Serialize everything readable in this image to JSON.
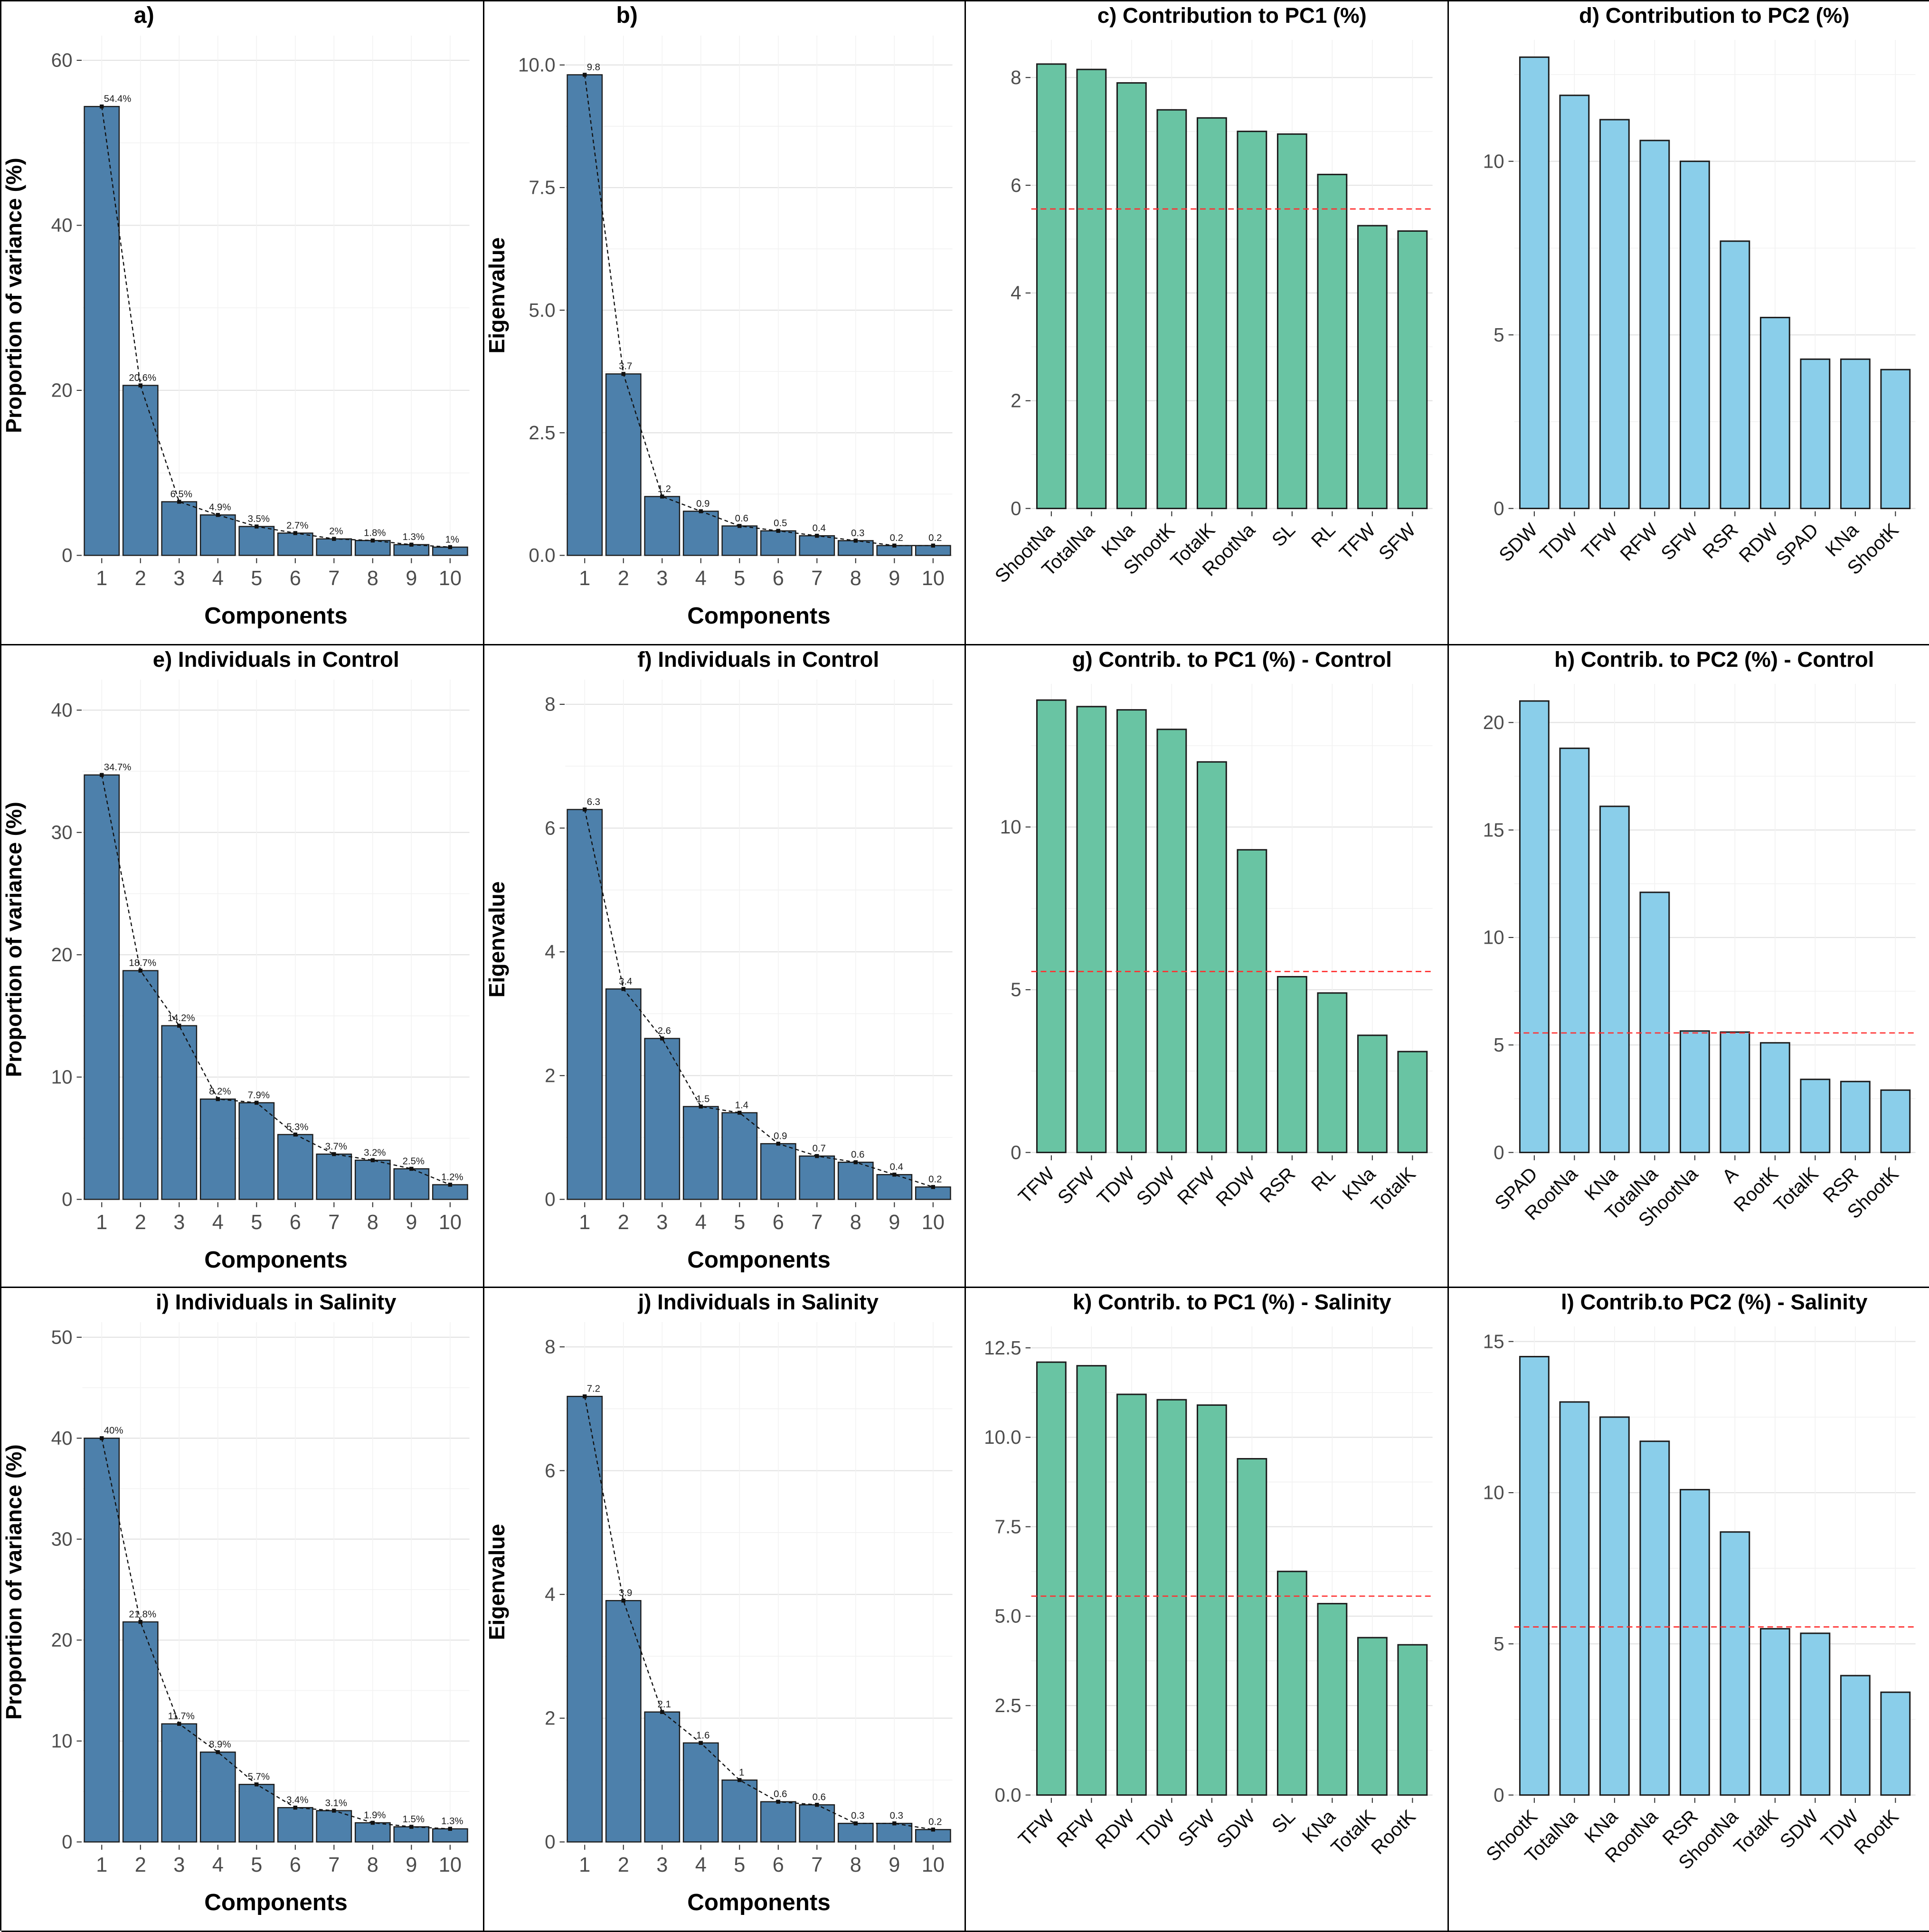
{
  "figure": {
    "description": "PCA scree plots, eigenvalue plots and variable contribution bar charts",
    "threshold_value": 5.56
  },
  "colors": {
    "scree_bar": "#4d80ab",
    "pc1_bar": "#69c4a3",
    "pc2_bar": "#8aceea",
    "threshold": "#ff3030",
    "bar_stroke": "#1b1b1b",
    "grid_major": "#e3e3e3",
    "grid_minor": "#f2f2f2",
    "tick_text": "#4d4d4d",
    "text": "#000000"
  },
  "chart_data": [
    {
      "id": "a",
      "title": "a)",
      "type": "bar",
      "role": "scree-proportion-of-variance",
      "categories": [
        "1",
        "2",
        "3",
        "4",
        "5",
        "6",
        "7",
        "8",
        "9",
        "10"
      ],
      "values": [
        54.4,
        20.6,
        6.5,
        4.9,
        3.5,
        2.7,
        2.0,
        1.8,
        1.3,
        1.0
      ],
      "point_labels": [
        "54.4%",
        "20.6%",
        "6.5%",
        "4.9%",
        "3.5%",
        "2.7%",
        "2%",
        "1.8%",
        "1.3%",
        "1%"
      ],
      "xlabel": "Components",
      "ylabel": "Proportion of variance (%)",
      "yticks": [
        0,
        20,
        40,
        60
      ],
      "ytick_labels": [
        "0",
        "20",
        "40",
        "60"
      ],
      "ylim": [
        0,
        63
      ],
      "bar_color": "#4d80ab",
      "line_overlay": true,
      "threshold": null,
      "rotated_x_labels": false,
      "grid": true,
      "legend": null
    },
    {
      "id": "b",
      "title": "b)",
      "type": "bar",
      "role": "scree-eigenvalue",
      "categories": [
        "1",
        "2",
        "3",
        "4",
        "5",
        "6",
        "7",
        "8",
        "9",
        "10"
      ],
      "values": [
        9.8,
        3.7,
        1.2,
        0.9,
        0.6,
        0.5,
        0.4,
        0.3,
        0.2,
        0.2
      ],
      "point_labels": [
        "9.8",
        "3.7",
        "1.2",
        "0.9",
        "0.6",
        "0.5",
        "0.4",
        "0.3",
        "0.2",
        "0.2"
      ],
      "xlabel": "Components",
      "ylabel": "Eigenvalue",
      "yticks": [
        0,
        2.5,
        5,
        7.5,
        10
      ],
      "ytick_labels": [
        "0.0",
        "2.5",
        "5.0",
        "7.5",
        "10.0"
      ],
      "ylim": [
        0,
        10.6
      ],
      "bar_color": "#4d80ab",
      "line_overlay": true,
      "threshold": null,
      "rotated_x_labels": false,
      "grid": true,
      "legend": null
    },
    {
      "id": "c",
      "title": "c) Contribution to PC1 (%)",
      "type": "bar",
      "role": "variable-contribution",
      "categories": [
        "ShootNa",
        "TotalNa",
        "KNa",
        "ShootK",
        "TotalK",
        "RootNa",
        "SL",
        "RL",
        "TFW",
        "SFW"
      ],
      "values": [
        8.25,
        8.15,
        7.9,
        7.4,
        7.25,
        7.0,
        6.95,
        6.2,
        5.25,
        5.15
      ],
      "point_labels": null,
      "xlabel": "",
      "ylabel": "",
      "yticks": [
        0,
        2,
        4,
        6,
        8
      ],
      "ytick_labels": [
        "0",
        "2",
        "4",
        "6",
        "8"
      ],
      "ylim": [
        0,
        8.7
      ],
      "bar_color": "#69c4a3",
      "line_overlay": false,
      "threshold": 5.56,
      "rotated_x_labels": true,
      "grid": true,
      "legend": null
    },
    {
      "id": "d",
      "title": "d) Contribution to PC2 (%)",
      "type": "bar",
      "role": "variable-contribution",
      "categories": [
        "SDW",
        "TDW",
        "TFW",
        "RFW",
        "SFW",
        "RSR",
        "RDW",
        "SPAD",
        "KNa",
        "ShootK"
      ],
      "values": [
        13.0,
        11.9,
        11.2,
        10.6,
        10.0,
        7.7,
        5.5,
        4.3,
        4.3,
        4.0
      ],
      "point_labels": null,
      "xlabel": "",
      "ylabel": "",
      "yticks": [
        0,
        5,
        10
      ],
      "ytick_labels": [
        "0",
        "5",
        "10"
      ],
      "ylim": [
        0,
        13.5
      ],
      "bar_color": "#8aceea",
      "line_overlay": false,
      "threshold": null,
      "rotated_x_labels": true,
      "grid": true,
      "legend": null
    },
    {
      "id": "e",
      "title": "e) Individuals in Control",
      "type": "bar",
      "role": "scree-proportion-of-variance",
      "categories": [
        "1",
        "2",
        "3",
        "4",
        "5",
        "6",
        "7",
        "8",
        "9",
        "10"
      ],
      "values": [
        34.7,
        18.7,
        14.2,
        8.2,
        7.9,
        5.3,
        3.7,
        3.2,
        2.5,
        1.2
      ],
      "point_labels": [
        "34.7%",
        "18.7%",
        "14.2%",
        "8.2%",
        "7.9%",
        "5.3%",
        "3.7%",
        "3.2%",
        "2.5%",
        "1.2%"
      ],
      "xlabel": "Components",
      "ylabel": "Proportion of variance (%)",
      "yticks": [
        0,
        10,
        20,
        30,
        40
      ],
      "ytick_labels": [
        "0",
        "10",
        "20",
        "30",
        "40"
      ],
      "ylim": [
        0,
        42.5
      ],
      "bar_color": "#4d80ab",
      "line_overlay": true,
      "threshold": null,
      "rotated_x_labels": false,
      "grid": true,
      "legend": null
    },
    {
      "id": "f",
      "title": "f) Individuals in Control",
      "type": "bar",
      "role": "scree-eigenvalue",
      "categories": [
        "1",
        "2",
        "3",
        "4",
        "5",
        "6",
        "7",
        "8",
        "9",
        "10"
      ],
      "values": [
        6.3,
        3.4,
        2.6,
        1.5,
        1.4,
        0.9,
        0.7,
        0.6,
        0.4,
        0.2
      ],
      "point_labels": [
        "6.3",
        "3.4",
        "2.6",
        "1.5",
        "1.4",
        "0.9",
        "0.7",
        "0.6",
        "0.4",
        "0.2"
      ],
      "xlabel": "Components",
      "ylabel": "Eigenvalue",
      "yticks": [
        0,
        2,
        4,
        6,
        8
      ],
      "ytick_labels": [
        "0",
        "2",
        "4",
        "6",
        "8"
      ],
      "ylim": [
        0,
        8.4
      ],
      "bar_color": "#4d80ab",
      "line_overlay": true,
      "threshold": null,
      "rotated_x_labels": false,
      "grid": true,
      "legend": null
    },
    {
      "id": "g",
      "title": "g) Contrib. to PC1 (%) - Control",
      "type": "bar",
      "role": "variable-contribution",
      "categories": [
        "TFW",
        "SFW",
        "TDW",
        "SDW",
        "RFW",
        "RDW",
        "RSR",
        "RL",
        "KNa",
        "TotalK"
      ],
      "values": [
        13.9,
        13.7,
        13.6,
        13.0,
        12.0,
        9.3,
        5.4,
        4.9,
        3.6,
        3.1
      ],
      "point_labels": null,
      "xlabel": "",
      "ylabel": "",
      "yticks": [
        0,
        5,
        10
      ],
      "ytick_labels": [
        "0",
        "5",
        "10"
      ],
      "ylim": [
        0,
        14.4
      ],
      "bar_color": "#69c4a3",
      "line_overlay": false,
      "threshold": 5.56,
      "rotated_x_labels": true,
      "grid": true,
      "legend": null
    },
    {
      "id": "h",
      "title": "h) Contrib. to PC2 (%) - Control",
      "type": "bar",
      "role": "variable-contribution",
      "categories": [
        "SPAD",
        "RootNa",
        "KNa",
        "TotalNa",
        "ShootNa",
        "A",
        "RootK",
        "TotalK",
        "RSR",
        "ShootK"
      ],
      "values": [
        21.0,
        18.8,
        16.1,
        12.1,
        5.65,
        5.6,
        5.1,
        3.4,
        3.3,
        2.9
      ],
      "point_labels": null,
      "xlabel": "",
      "ylabel": "",
      "yticks": [
        0,
        5,
        10,
        15,
        20
      ],
      "ytick_labels": [
        "0",
        "5",
        "10",
        "15",
        "20"
      ],
      "ylim": [
        0,
        21.8
      ],
      "bar_color": "#8aceea",
      "line_overlay": false,
      "threshold": 5.56,
      "rotated_x_labels": true,
      "grid": true,
      "legend": null
    },
    {
      "id": "i",
      "title": "i) Individuals in Salinity",
      "type": "bar",
      "role": "scree-proportion-of-variance",
      "categories": [
        "1",
        "2",
        "3",
        "4",
        "5",
        "6",
        "7",
        "8",
        "9",
        "10"
      ],
      "values": [
        40.0,
        21.8,
        11.7,
        8.9,
        5.7,
        3.4,
        3.1,
        1.9,
        1.5,
        1.3
      ],
      "point_labels": [
        "40%",
        "21.8%",
        "11.7%",
        "8.9%",
        "5.7%",
        "3.4%",
        "3.1%",
        "1.9%",
        "1.5%",
        "1.3%"
      ],
      "xlabel": "Components",
      "ylabel": "Proportion of variance (%)",
      "yticks": [
        0,
        10,
        20,
        30,
        40,
        50
      ],
      "ytick_labels": [
        "0",
        "10",
        "20",
        "30",
        "40",
        "50"
      ],
      "ylim": [
        0,
        51.5
      ],
      "bar_color": "#4d80ab",
      "line_overlay": true,
      "threshold": null,
      "rotated_x_labels": false,
      "grid": true,
      "legend": null
    },
    {
      "id": "j",
      "title": "j) Individuals in Salinity",
      "type": "bar",
      "role": "scree-eigenvalue",
      "categories": [
        "1",
        "2",
        "3",
        "4",
        "5",
        "6",
        "7",
        "8",
        "9",
        "10"
      ],
      "values": [
        7.2,
        3.9,
        2.1,
        1.6,
        1.0,
        0.65,
        0.6,
        0.3,
        0.3,
        0.2
      ],
      "point_labels": [
        "7.2",
        "3.9",
        "2.1",
        "1.6",
        "1",
        "0.6",
        "0.6",
        "0.3",
        "0.3",
        "0.2"
      ],
      "xlabel": "Components",
      "ylabel": "Eigenvalue",
      "yticks": [
        0,
        2,
        4,
        6,
        8
      ],
      "ytick_labels": [
        "0",
        "2",
        "4",
        "6",
        "8"
      ],
      "ylim": [
        0,
        8.4
      ],
      "bar_color": "#4d80ab",
      "line_overlay": true,
      "threshold": null,
      "rotated_x_labels": false,
      "grid": true,
      "legend": null
    },
    {
      "id": "k",
      "title": "k) Contrib. to PC1 (%) - Salinity",
      "type": "bar",
      "role": "variable-contribution",
      "categories": [
        "TFW",
        "RFW",
        "RDW",
        "TDW",
        "SFW",
        "SDW",
        "SL",
        "KNa",
        "TotalK",
        "RootK"
      ],
      "values": [
        12.1,
        12.0,
        11.2,
        11.05,
        10.9,
        9.4,
        6.25,
        5.35,
        4.4,
        4.2
      ],
      "point_labels": null,
      "xlabel": "",
      "ylabel": "",
      "yticks": [
        0,
        2.5,
        5,
        7.5,
        10,
        12.5
      ],
      "ytick_labels": [
        "0.0",
        "2.5",
        "5.0",
        "7.5",
        "10.0",
        "12.5"
      ],
      "ylim": [
        0,
        13.1
      ],
      "bar_color": "#69c4a3",
      "line_overlay": false,
      "threshold": 5.56,
      "rotated_x_labels": true,
      "grid": true,
      "legend": null
    },
    {
      "id": "l",
      "title": "l) Contrib.to PC2 (%) - Salinity",
      "type": "bar",
      "role": "variable-contribution",
      "categories": [
        "ShootK",
        "TotalNa",
        "KNa",
        "RootNa",
        "RSR",
        "ShootNa",
        "TotalK",
        "SDW",
        "TDW",
        "RootK"
      ],
      "values": [
        14.5,
        13.0,
        12.5,
        11.7,
        10.1,
        8.7,
        5.5,
        5.35,
        3.95,
        3.4
      ],
      "point_labels": null,
      "xlabel": "",
      "ylabel": "",
      "yticks": [
        0,
        5,
        10,
        15
      ],
      "ytick_labels": [
        "0",
        "5",
        "10",
        "15"
      ],
      "ylim": [
        0,
        15.5
      ],
      "bar_color": "#8aceea",
      "line_overlay": false,
      "threshold": 5.56,
      "rotated_x_labels": true,
      "grid": true,
      "legend": null
    }
  ]
}
